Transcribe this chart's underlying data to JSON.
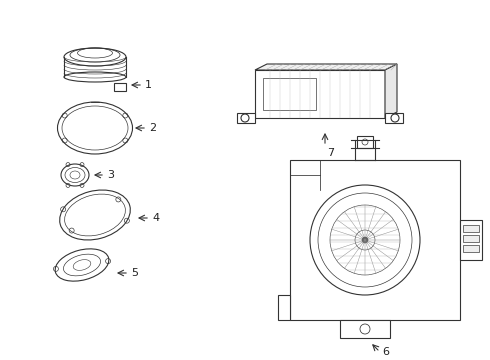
{
  "bg_color": "#ffffff",
  "line_color": "#333333",
  "line_width": 0.8,
  "label_color": "#222222",
  "labels": [
    "1",
    "2",
    "3",
    "4",
    "5",
    "6",
    "7"
  ],
  "figsize": [
    4.9,
    3.6
  ],
  "dpi": 100
}
